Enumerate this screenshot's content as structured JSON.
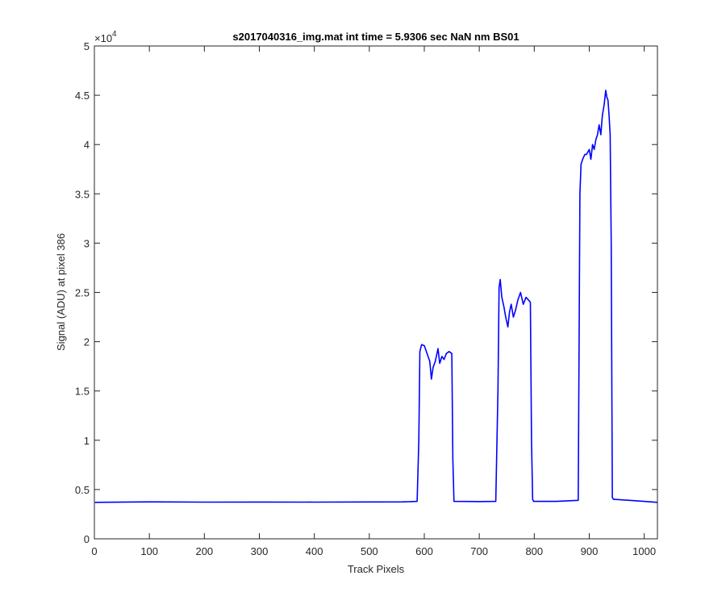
{
  "chart_data": {
    "type": "line",
    "title": "s2017040316_img.mat int time = 5.9306 sec  NaN nm BS01",
    "xlabel": "Track Pixels",
    "ylabel": "Signal (ADU) at pixel 386",
    "y_exponent_label": "×10",
    "y_exponent_power": "4",
    "xlim": [
      0,
      1024
    ],
    "ylim": [
      0,
      5
    ],
    "y_scale_note": "values in units of 1e4",
    "xticks": [
      0,
      100,
      200,
      300,
      400,
      500,
      600,
      700,
      800,
      900,
      1000
    ],
    "xtick_labels": [
      "0",
      "100",
      "200",
      "300",
      "400",
      "500",
      "600",
      "700",
      "800",
      "900",
      "1000"
    ],
    "yticks": [
      0,
      0.5,
      1,
      1.5,
      2,
      2.5,
      3,
      3.5,
      4,
      4.5,
      5
    ],
    "ytick_labels": [
      "0",
      "0.5",
      "1",
      "1.5",
      "2",
      "2.5",
      "3",
      "3.5",
      "4",
      "4.5",
      "5"
    ],
    "grid": false,
    "series_color": "#0000ff",
    "series": [
      {
        "x": [
          1,
          100,
          200,
          300,
          400,
          500,
          560,
          587,
          590,
          592,
          595,
          600,
          605,
          610,
          613,
          616,
          620,
          625,
          628,
          632,
          636,
          640,
          645,
          650,
          652,
          654,
          700,
          730,
          734,
          736,
          738,
          741,
          745,
          748,
          752,
          755,
          758,
          762,
          766,
          770,
          775,
          780,
          785,
          790,
          793,
          795,
          797,
          799,
          840,
          880,
          883,
          885,
          888,
          892,
          895,
          900,
          903,
          906,
          909,
          912,
          915,
          918,
          921,
          924,
          927,
          930,
          932,
          934,
          936,
          938,
          940,
          942,
          944,
          946,
          1000,
          1024
        ],
        "y": [
          0.37,
          0.375,
          0.372,
          0.373,
          0.372,
          0.374,
          0.375,
          0.38,
          1.0,
          1.9,
          1.97,
          1.96,
          1.88,
          1.8,
          1.62,
          1.74,
          1.8,
          1.93,
          1.78,
          1.85,
          1.82,
          1.88,
          1.9,
          1.88,
          0.8,
          0.38,
          0.378,
          0.38,
          1.5,
          2.55,
          2.63,
          2.45,
          2.35,
          2.25,
          2.15,
          2.3,
          2.38,
          2.25,
          2.32,
          2.42,
          2.5,
          2.38,
          2.45,
          2.42,
          2.4,
          1.0,
          0.4,
          0.38,
          0.38,
          0.39,
          3.5,
          3.8,
          3.85,
          3.9,
          3.9,
          3.95,
          3.85,
          4.0,
          3.95,
          4.05,
          4.1,
          4.2,
          4.1,
          4.3,
          4.4,
          4.55,
          4.48,
          4.45,
          4.3,
          4.1,
          3.0,
          0.42,
          0.4,
          0.4,
          0.38,
          0.37
        ]
      }
    ]
  }
}
